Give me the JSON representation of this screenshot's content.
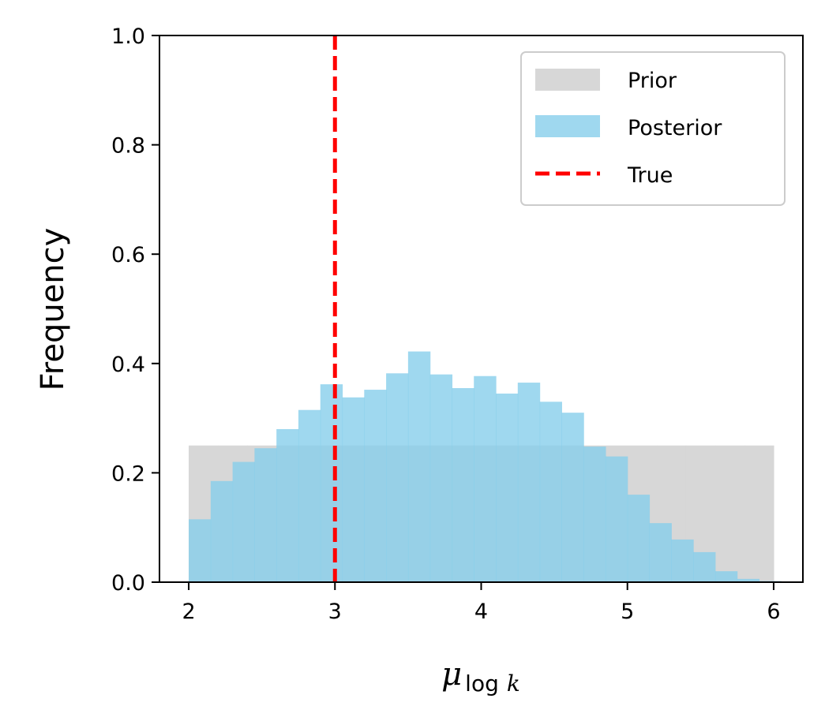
{
  "chart_data": {
    "type": "bar",
    "xlabel": {
      "main": "μ",
      "sub": "log",
      "sub_var": "k"
    },
    "ylabel": "Frequency",
    "xlim": [
      1.8,
      6.2
    ],
    "ylim": [
      0,
      1.0
    ],
    "xticks": [
      {
        "value": 2,
        "label": "2"
      },
      {
        "value": 3,
        "label": "3"
      },
      {
        "value": 4,
        "label": "4"
      },
      {
        "value": 5,
        "label": "5"
      },
      {
        "value": 6,
        "label": "6"
      }
    ],
    "yticks": [
      {
        "value": 0.0,
        "label": "0.0"
      },
      {
        "value": 0.2,
        "label": "0.2"
      },
      {
        "value": 0.4,
        "label": "0.4"
      },
      {
        "value": 0.6,
        "label": "0.6"
      },
      {
        "value": 0.8,
        "label": "0.8"
      },
      {
        "value": 1.0,
        "label": "1.0"
      }
    ],
    "legend_position": "top-right",
    "grid": false,
    "series": [
      {
        "name": "Prior",
        "kind": "histogram",
        "color": "#d7d7d7",
        "bin_start": 2.0,
        "bin_width": 0.2,
        "values": [
          0.25,
          0.25,
          0.25,
          0.25,
          0.25,
          0.25,
          0.25,
          0.25,
          0.25,
          0.25,
          0.25,
          0.25,
          0.25,
          0.25,
          0.25,
          0.25,
          0.25,
          0.25,
          0.25,
          0.25
        ]
      },
      {
        "name": "Posterior",
        "kind": "histogram",
        "color": "#87ceeb",
        "opacity": 0.8,
        "bin_start": 2.0,
        "bin_width": 0.15,
        "values": [
          0.115,
          0.185,
          0.22,
          0.245,
          0.28,
          0.315,
          0.362,
          0.338,
          0.352,
          0.382,
          0.422,
          0.38,
          0.355,
          0.377,
          0.345,
          0.365,
          0.33,
          0.31,
          0.248,
          0.23,
          0.16,
          0.108,
          0.078,
          0.055,
          0.02,
          0.006,
          0.002
        ]
      },
      {
        "name": "True",
        "kind": "vline",
        "color": "#ff0000",
        "x": 3.0
      }
    ]
  }
}
